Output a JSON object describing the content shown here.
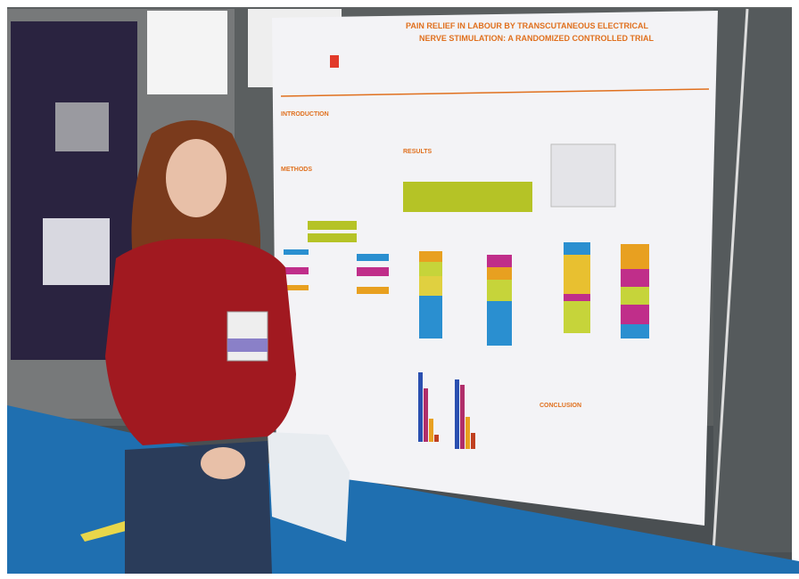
{
  "poster": {
    "title_lines": [
      "PAIN RELIEF IN LABOUR BY TRANSCUTANEOUS ELECTRICAL",
      "NERVE STIMULATION: A RANDOMIZED CONTROLLED TRIAL"
    ],
    "sections": [
      "INTRODUCTION",
      "METHODS",
      "RESULTS",
      "CONCLUSION"
    ]
  }
}
